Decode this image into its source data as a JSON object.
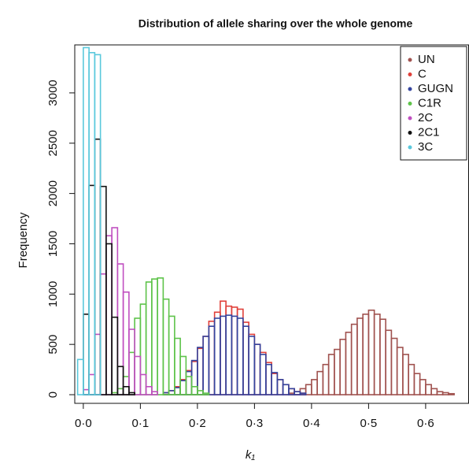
{
  "chart_data": {
    "type": "histogram",
    "title": "Distribution of allele sharing over the whole genome",
    "x_label": "k₁",
    "y_label": "Frequency",
    "xlim": [
      -0.015,
      0.676
    ],
    "ylim": [
      -86,
      3477
    ],
    "xticks": [
      {
        "value": 0,
        "label": "0·0"
      },
      {
        "value": 0.1,
        "label": "0·1"
      },
      {
        "value": 0.2,
        "label": "0·2"
      },
      {
        "value": 0.3,
        "label": "0·3"
      },
      {
        "value": 0.4,
        "label": "0·4"
      },
      {
        "value": 0.5,
        "label": "0·5"
      },
      {
        "value": 0.6,
        "label": "0·6"
      }
    ],
    "yticks": [
      0,
      500,
      1000,
      1500,
      2000,
      2500,
      3000
    ],
    "legend": "top right",
    "series": [
      {
        "name": "UN",
        "color": "#a0524f",
        "bins": [
          0.36,
          0.37,
          0.38,
          0.39,
          0.4,
          0.41,
          0.42,
          0.43,
          0.44,
          0.45,
          0.46,
          0.47,
          0.48,
          0.49,
          0.5,
          0.51,
          0.52,
          0.53,
          0.54,
          0.55,
          0.56,
          0.57,
          0.58,
          0.59,
          0.6,
          0.61,
          0.62,
          0.63,
          0.64,
          0.65
        ],
        "values": [
          15,
          30,
          60,
          100,
          150,
          230,
          300,
          400,
          450,
          550,
          620,
          700,
          760,
          800,
          840,
          800,
          750,
          640,
          560,
          470,
          400,
          300,
          210,
          150,
          100,
          60,
          30,
          20,
          10
        ]
      },
      {
        "name": "C",
        "color": "#e0403a",
        "bins": [
          0.14,
          0.15,
          0.16,
          0.17,
          0.18,
          0.19,
          0.2,
          0.21,
          0.22,
          0.23,
          0.24,
          0.25,
          0.26,
          0.27,
          0.28,
          0.29,
          0.3,
          0.31,
          0.32,
          0.33,
          0.34,
          0.35,
          0.36,
          0.37,
          0.38,
          0.39
        ],
        "values": [
          20,
          40,
          80,
          150,
          240,
          330,
          460,
          580,
          730,
          820,
          930,
          880,
          870,
          850,
          720,
          600,
          500,
          420,
          320,
          210,
          150,
          100,
          60,
          30,
          15
        ]
      },
      {
        "name": "GUGN",
        "color": "#34449e",
        "bins": [
          0.14,
          0.15,
          0.16,
          0.17,
          0.18,
          0.19,
          0.2,
          0.21,
          0.22,
          0.23,
          0.24,
          0.25,
          0.26,
          0.27,
          0.28,
          0.29,
          0.3,
          0.31,
          0.32,
          0.33,
          0.34,
          0.35,
          0.36,
          0.37,
          0.38,
          0.39
        ],
        "values": [
          20,
          40,
          70,
          140,
          230,
          340,
          470,
          580,
          680,
          760,
          780,
          790,
          780,
          760,
          680,
          580,
          500,
          400,
          300,
          220,
          150,
          100,
          60,
          30,
          15
        ]
      },
      {
        "name": "C1R",
        "color": "#5ec34a",
        "bins": [
          0.05,
          0.06,
          0.07,
          0.08,
          0.09,
          0.1,
          0.11,
          0.12,
          0.13,
          0.14,
          0.15,
          0.16,
          0.17,
          0.18,
          0.19,
          0.2,
          0.21,
          0.22
        ],
        "values": [
          20,
          60,
          180,
          420,
          760,
          900,
          1120,
          1150,
          1160,
          950,
          780,
          560,
          380,
          180,
          80,
          40,
          15
        ]
      },
      {
        "name": "2C",
        "color": "#c04fc0",
        "bins": [
          0.0,
          0.01,
          0.02,
          0.03,
          0.04,
          0.05,
          0.06,
          0.07,
          0.08,
          0.09,
          0.1,
          0.11,
          0.12,
          0.13
        ],
        "values": [
          50,
          200,
          600,
          1200,
          1580,
          1660,
          1300,
          1020,
          650,
          380,
          200,
          80,
          30
        ]
      },
      {
        "name": "2C1",
        "color": "#111111",
        "bins": [
          0.0,
          0.01,
          0.02,
          0.03,
          0.04,
          0.05,
          0.06,
          0.07,
          0.08,
          0.09
        ],
        "values": [
          800,
          2080,
          2540,
          2070,
          1500,
          770,
          280,
          80,
          20
        ]
      },
      {
        "name": "3C",
        "color": "#5ac8dc",
        "bins": [
          -0.01,
          0.0,
          0.01,
          0.02,
          0.03
        ],
        "values": [
          350,
          3450,
          3400,
          3380
        ]
      }
    ]
  }
}
